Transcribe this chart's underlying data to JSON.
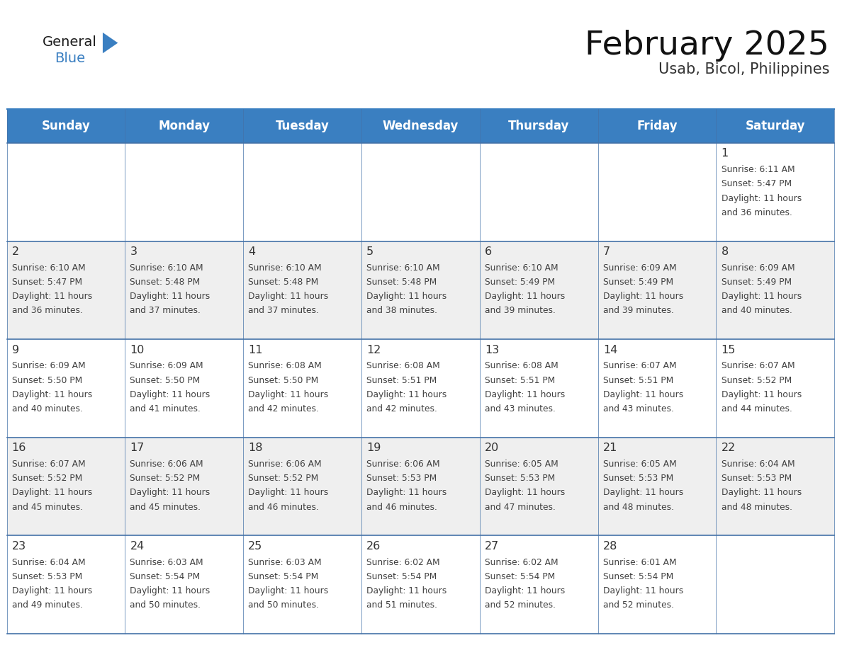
{
  "title": "February 2025",
  "subtitle": "Usab, Bicol, Philippines",
  "header_color": "#3A7FC1",
  "header_text_color": "#FFFFFF",
  "cell_bg_color": "#FFFFFF",
  "alt_cell_bg_color": "#EFEFEF",
  "day_names": [
    "Sunday",
    "Monday",
    "Tuesday",
    "Wednesday",
    "Thursday",
    "Friday",
    "Saturday"
  ],
  "grid_line_color": "#4472A8",
  "day_number_color": "#333333",
  "info_text_color": "#404040",
  "logo_general_color": "#1a1a1a",
  "logo_blue_color": "#3A7FC1",
  "logo_triangle_color": "#3A7FC1",
  "calendar": [
    [
      null,
      null,
      null,
      null,
      null,
      null,
      1
    ],
    [
      2,
      3,
      4,
      5,
      6,
      7,
      8
    ],
    [
      9,
      10,
      11,
      12,
      13,
      14,
      15
    ],
    [
      16,
      17,
      18,
      19,
      20,
      21,
      22
    ],
    [
      23,
      24,
      25,
      26,
      27,
      28,
      null
    ]
  ],
  "sunrise": {
    "1": "6:11 AM",
    "2": "6:10 AM",
    "3": "6:10 AM",
    "4": "6:10 AM",
    "5": "6:10 AM",
    "6": "6:10 AM",
    "7": "6:09 AM",
    "8": "6:09 AM",
    "9": "6:09 AM",
    "10": "6:09 AM",
    "11": "6:08 AM",
    "12": "6:08 AM",
    "13": "6:08 AM",
    "14": "6:07 AM",
    "15": "6:07 AM",
    "16": "6:07 AM",
    "17": "6:06 AM",
    "18": "6:06 AM",
    "19": "6:06 AM",
    "20": "6:05 AM",
    "21": "6:05 AM",
    "22": "6:04 AM",
    "23": "6:04 AM",
    "24": "6:03 AM",
    "25": "6:03 AM",
    "26": "6:02 AM",
    "27": "6:02 AM",
    "28": "6:01 AM"
  },
  "sunset": {
    "1": "5:47 PM",
    "2": "5:47 PM",
    "3": "5:48 PM",
    "4": "5:48 PM",
    "5": "5:48 PM",
    "6": "5:49 PM",
    "7": "5:49 PM",
    "8": "5:49 PM",
    "9": "5:50 PM",
    "10": "5:50 PM",
    "11": "5:50 PM",
    "12": "5:51 PM",
    "13": "5:51 PM",
    "14": "5:51 PM",
    "15": "5:52 PM",
    "16": "5:52 PM",
    "17": "5:52 PM",
    "18": "5:52 PM",
    "19": "5:53 PM",
    "20": "5:53 PM",
    "21": "5:53 PM",
    "22": "5:53 PM",
    "23": "5:53 PM",
    "24": "5:54 PM",
    "25": "5:54 PM",
    "26": "5:54 PM",
    "27": "5:54 PM",
    "28": "5:54 PM"
  },
  "daylight": {
    "1": "11 hours\nand 36 minutes.",
    "2": "11 hours\nand 36 minutes.",
    "3": "11 hours\nand 37 minutes.",
    "4": "11 hours\nand 37 minutes.",
    "5": "11 hours\nand 38 minutes.",
    "6": "11 hours\nand 39 minutes.",
    "7": "11 hours\nand 39 minutes.",
    "8": "11 hours\nand 40 minutes.",
    "9": "11 hours\nand 40 minutes.",
    "10": "11 hours\nand 41 minutes.",
    "11": "11 hours\nand 42 minutes.",
    "12": "11 hours\nand 42 minutes.",
    "13": "11 hours\nand 43 minutes.",
    "14": "11 hours\nand 43 minutes.",
    "15": "11 hours\nand 44 minutes.",
    "16": "11 hours\nand 45 minutes.",
    "17": "11 hours\nand 45 minutes.",
    "18": "11 hours\nand 46 minutes.",
    "19": "11 hours\nand 46 minutes.",
    "20": "11 hours\nand 47 minutes.",
    "21": "11 hours\nand 48 minutes.",
    "22": "11 hours\nand 48 minutes.",
    "23": "11 hours\nand 49 minutes.",
    "24": "11 hours\nand 50 minutes.",
    "25": "11 hours\nand 50 minutes.",
    "26": "11 hours\nand 51 minutes.",
    "27": "11 hours\nand 52 minutes.",
    "28": "11 hours\nand 52 minutes."
  }
}
